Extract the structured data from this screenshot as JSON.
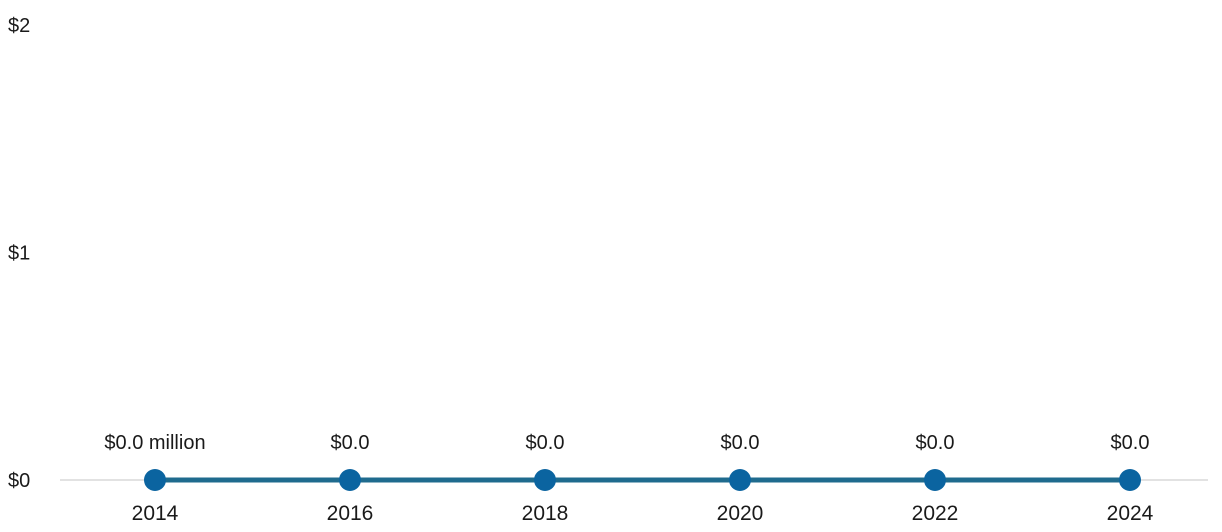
{
  "chart_data": {
    "type": "line",
    "title": "",
    "xlabel": "",
    "ylabel": "",
    "x": [
      "2014",
      "2016",
      "2018",
      "2020",
      "2022",
      "2024"
    ],
    "series": [
      {
        "values": [
          0,
          0,
          0,
          0,
          0,
          0
        ],
        "color": "#0b64a0"
      }
    ],
    "data_labels": [
      "$0.0 million",
      "$0.0",
      "$0.0",
      "$0.0",
      "$0.0",
      "$0.0"
    ],
    "ylim": [
      0,
      2
    ],
    "yticks": [
      {
        "value": 0,
        "label": "$0"
      },
      {
        "value": 1,
        "label": "$1"
      },
      {
        "value": 2,
        "label": "$2"
      }
    ],
    "grid": false,
    "legend": "none",
    "line_color": "#1f6b8e",
    "axis_color": "#d9d9d9"
  }
}
